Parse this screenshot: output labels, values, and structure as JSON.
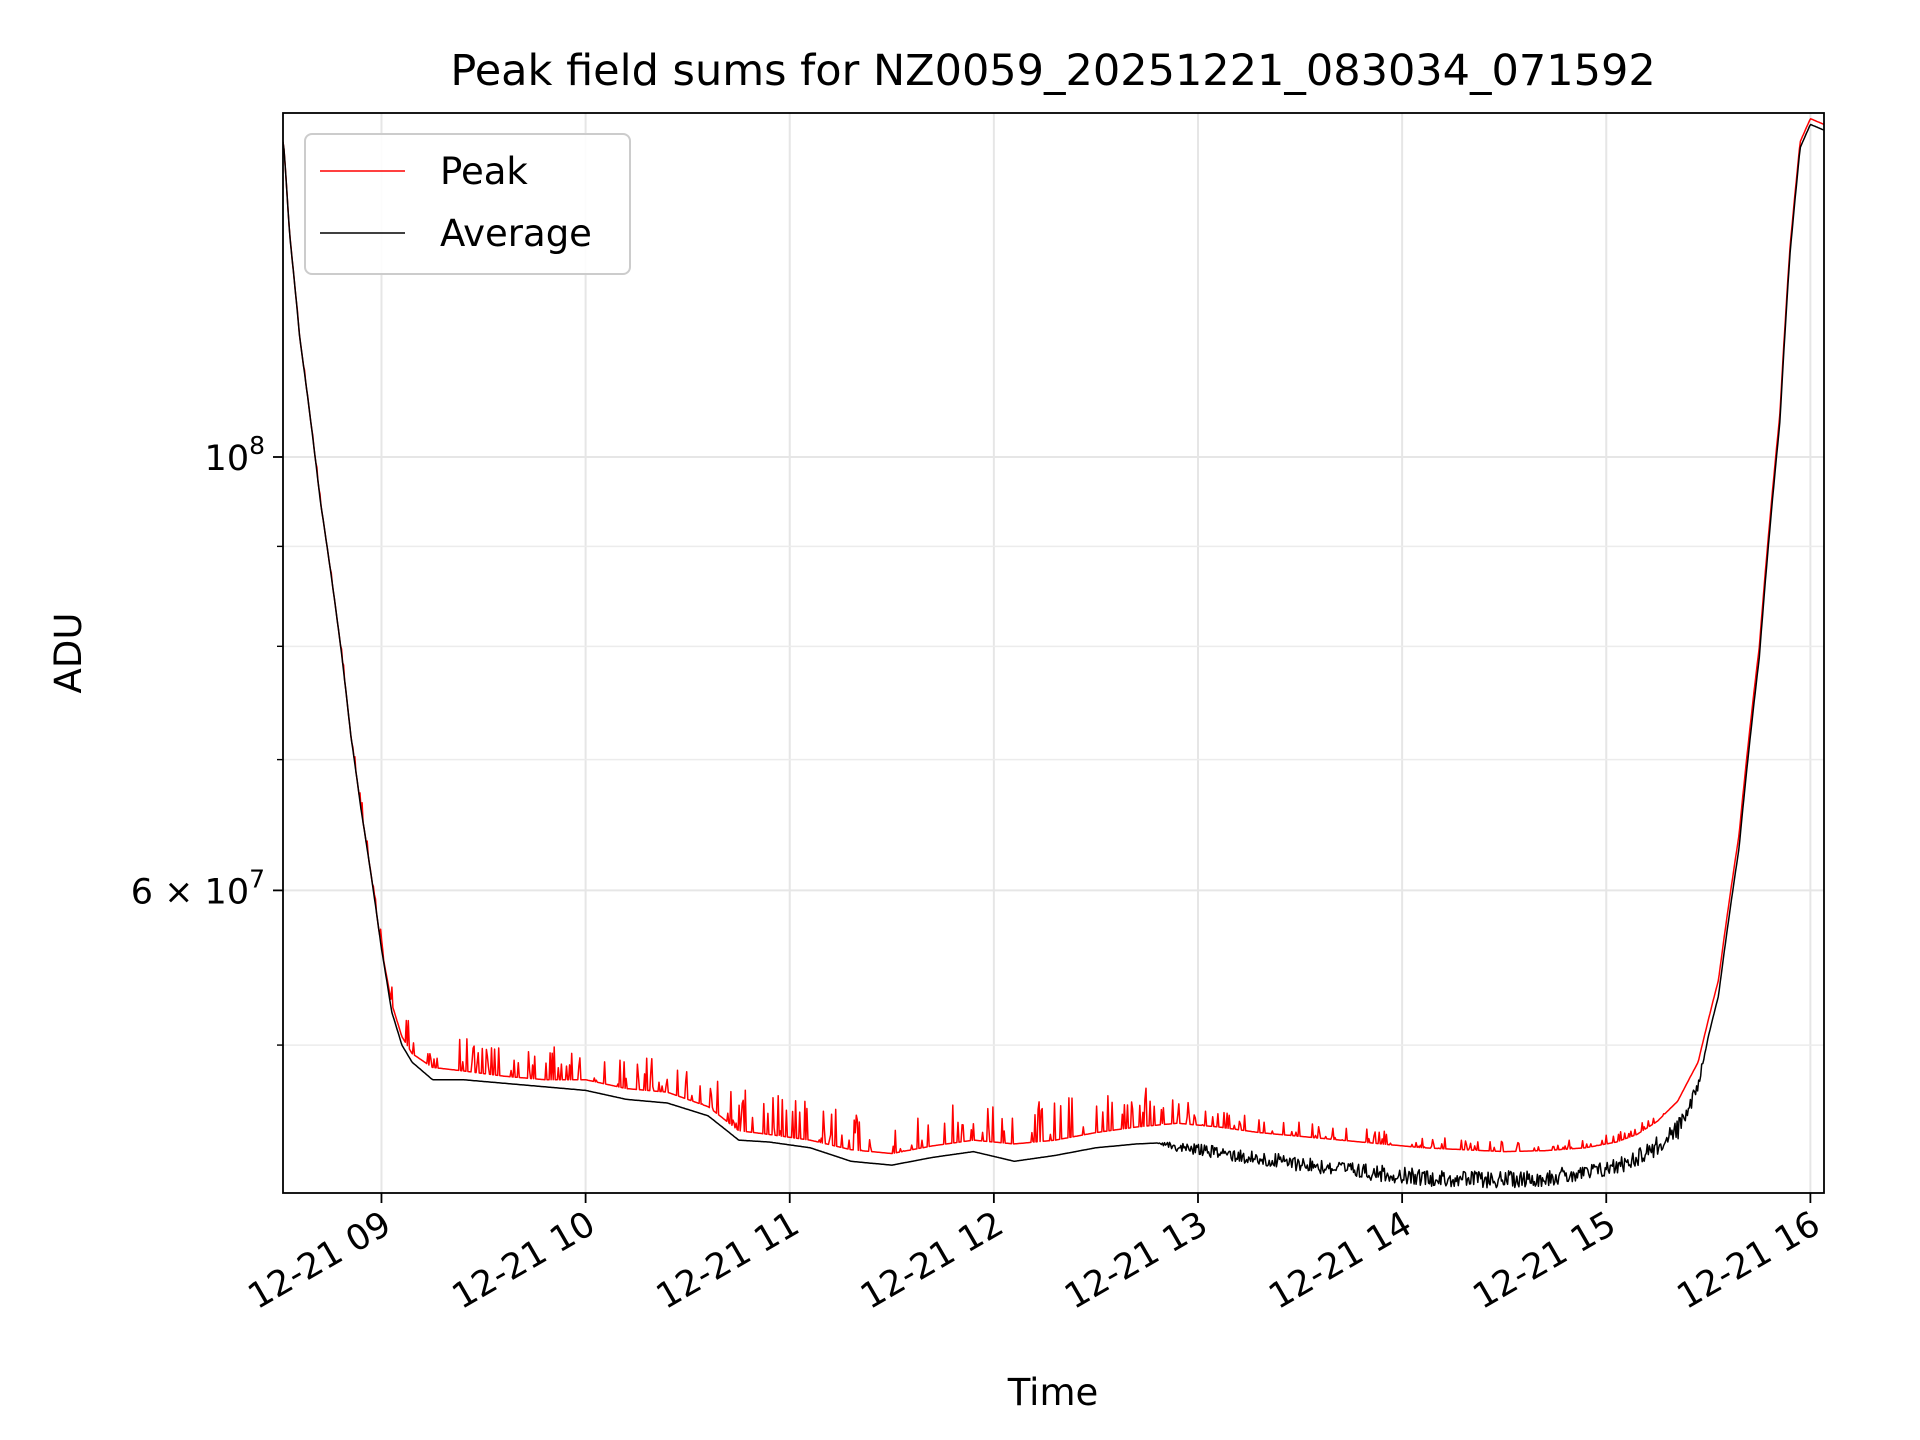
{
  "chart_data": {
    "type": "line",
    "title": "Peak field sums for NZ0059_20251221_083034_071592",
    "xlabel": "Time",
    "ylabel": "ADU",
    "yscale": "log",
    "grid": true,
    "legend_position": "top-left",
    "xlim_hours": [
      8.5176,
      16.0667
    ],
    "ylim": [
      42000000,
      150000000
    ],
    "x_ticks": [
      {
        "hour": 9,
        "label": "12-21 09"
      },
      {
        "hour": 10,
        "label": "12-21 10"
      },
      {
        "hour": 11,
        "label": "12-21 11"
      },
      {
        "hour": 12,
        "label": "12-21 12"
      },
      {
        "hour": 13,
        "label": "12-21 13"
      },
      {
        "hour": 14,
        "label": "12-21 14"
      },
      {
        "hour": 15,
        "label": "12-21 15"
      },
      {
        "hour": 16,
        "label": "12-21 16"
      }
    ],
    "y_major_ticks": [
      {
        "value": 100000000,
        "base": "10",
        "exp": "8",
        "mult": ""
      },
      {
        "value": 60000000,
        "base": "10",
        "exp": "7",
        "mult": "6 × "
      }
    ],
    "y_minor_ticks": [
      50000000,
      70000000,
      80000000,
      90000000
    ],
    "series": [
      {
        "name": "Peak",
        "color": "#ff0000",
        "baseline_points": [
          [
            8.52,
            145000000
          ],
          [
            8.55,
            130000000
          ],
          [
            8.6,
            115000000
          ],
          [
            8.7,
            95000000
          ],
          [
            8.8,
            80000000
          ],
          [
            8.85,
            72000000
          ],
          [
            8.9,
            66000000
          ],
          [
            8.95,
            61000000
          ],
          [
            9.0,
            56000000
          ],
          [
            9.05,
            52500000
          ],
          [
            9.1,
            50500000
          ],
          [
            9.15,
            49500000
          ],
          [
            9.25,
            48700000
          ],
          [
            9.4,
            48500000
          ],
          [
            9.6,
            48200000
          ],
          [
            9.8,
            48000000
          ],
          [
            10.0,
            48000000
          ],
          [
            10.2,
            47500000
          ],
          [
            10.4,
            47300000
          ],
          [
            10.6,
            46500000
          ],
          [
            10.75,
            45200000
          ],
          [
            10.9,
            45000000
          ],
          [
            11.1,
            44700000
          ],
          [
            11.3,
            44200000
          ],
          [
            11.5,
            44000000
          ],
          [
            11.7,
            44400000
          ],
          [
            11.9,
            44700000
          ],
          [
            12.1,
            44500000
          ],
          [
            12.3,
            44700000
          ],
          [
            12.5,
            45100000
          ],
          [
            12.7,
            45400000
          ],
          [
            12.9,
            45600000
          ],
          [
            13.1,
            45400000
          ],
          [
            13.3,
            45100000
          ],
          [
            13.5,
            44900000
          ],
          [
            13.7,
            44700000
          ],
          [
            13.9,
            44500000
          ],
          [
            14.1,
            44300000
          ],
          [
            14.3,
            44200000
          ],
          [
            14.5,
            44100000
          ],
          [
            14.7,
            44150000
          ],
          [
            14.9,
            44300000
          ],
          [
            15.05,
            44600000
          ],
          [
            15.15,
            45000000
          ],
          [
            15.25,
            45700000
          ],
          [
            15.35,
            46800000
          ],
          [
            15.45,
            49000000
          ],
          [
            15.55,
            54000000
          ],
          [
            15.65,
            64000000
          ],
          [
            15.75,
            80000000
          ],
          [
            15.85,
            105000000
          ],
          [
            15.9,
            128000000
          ],
          [
            15.95,
            145000000
          ],
          [
            16.0,
            149000000
          ],
          [
            16.0667,
            148000000
          ]
        ],
        "noise_amplitudes": [
          [
            8.52,
            0.0
          ],
          [
            9.0,
            0.02
          ],
          [
            9.1,
            0.04
          ],
          [
            10.6,
            0.04
          ],
          [
            10.75,
            0.05
          ],
          [
            12.8,
            0.05
          ],
          [
            13.0,
            0.02
          ],
          [
            15.2,
            0.01
          ],
          [
            15.3,
            0.0
          ],
          [
            16.0667,
            0.0
          ]
        ]
      },
      {
        "name": "Average",
        "color": "#000000",
        "baseline_points": [
          [
            8.52,
            145000000
          ],
          [
            8.55,
            130000000
          ],
          [
            8.6,
            115000000
          ],
          [
            8.7,
            95000000
          ],
          [
            8.8,
            80000000
          ],
          [
            8.85,
            72000000
          ],
          [
            8.9,
            66000000
          ],
          [
            8.95,
            61000000
          ],
          [
            9.0,
            56000000
          ],
          [
            9.05,
            52000000
          ],
          [
            9.1,
            50000000
          ],
          [
            9.15,
            49000000
          ],
          [
            9.25,
            48000000
          ],
          [
            9.4,
            48000000
          ],
          [
            9.6,
            47800000
          ],
          [
            9.8,
            47600000
          ],
          [
            10.0,
            47400000
          ],
          [
            10.2,
            46900000
          ],
          [
            10.4,
            46700000
          ],
          [
            10.6,
            46000000
          ],
          [
            10.75,
            44700000
          ],
          [
            10.9,
            44600000
          ],
          [
            11.1,
            44300000
          ],
          [
            11.3,
            43600000
          ],
          [
            11.5,
            43400000
          ],
          [
            11.7,
            43800000
          ],
          [
            11.9,
            44100000
          ],
          [
            12.1,
            43600000
          ],
          [
            12.3,
            43900000
          ],
          [
            12.5,
            44300000
          ],
          [
            12.7,
            44500000
          ],
          [
            12.9,
            44600000
          ],
          [
            13.1,
            44400000
          ],
          [
            13.3,
            44100000
          ],
          [
            13.5,
            43900000
          ],
          [
            13.7,
            43600000
          ],
          [
            13.9,
            43400000
          ],
          [
            14.1,
            43200000
          ],
          [
            14.3,
            43100000
          ],
          [
            14.5,
            43100000
          ],
          [
            14.7,
            43200000
          ],
          [
            14.9,
            43400000
          ],
          [
            15.05,
            43800000
          ],
          [
            15.15,
            44300000
          ],
          [
            15.25,
            44900000
          ],
          [
            15.35,
            45800000
          ],
          [
            15.45,
            48000000
          ],
          [
            15.55,
            53000000
          ],
          [
            15.65,
            63000000
          ],
          [
            15.75,
            79000000
          ],
          [
            15.85,
            104000000
          ],
          [
            15.9,
            127000000
          ],
          [
            15.95,
            144000000
          ],
          [
            16.0,
            148000000
          ],
          [
            16.0667,
            147000000
          ]
        ],
        "noise_amplitudes": [
          [
            8.52,
            0.0
          ],
          [
            12.8,
            0.0
          ],
          [
            12.9,
            0.012
          ],
          [
            13.3,
            0.018
          ],
          [
            14.5,
            0.02
          ],
          [
            15.0,
            0.02
          ],
          [
            15.4,
            0.025
          ],
          [
            15.5,
            0.0
          ],
          [
            16.0667,
            0.0
          ]
        ]
      }
    ]
  }
}
